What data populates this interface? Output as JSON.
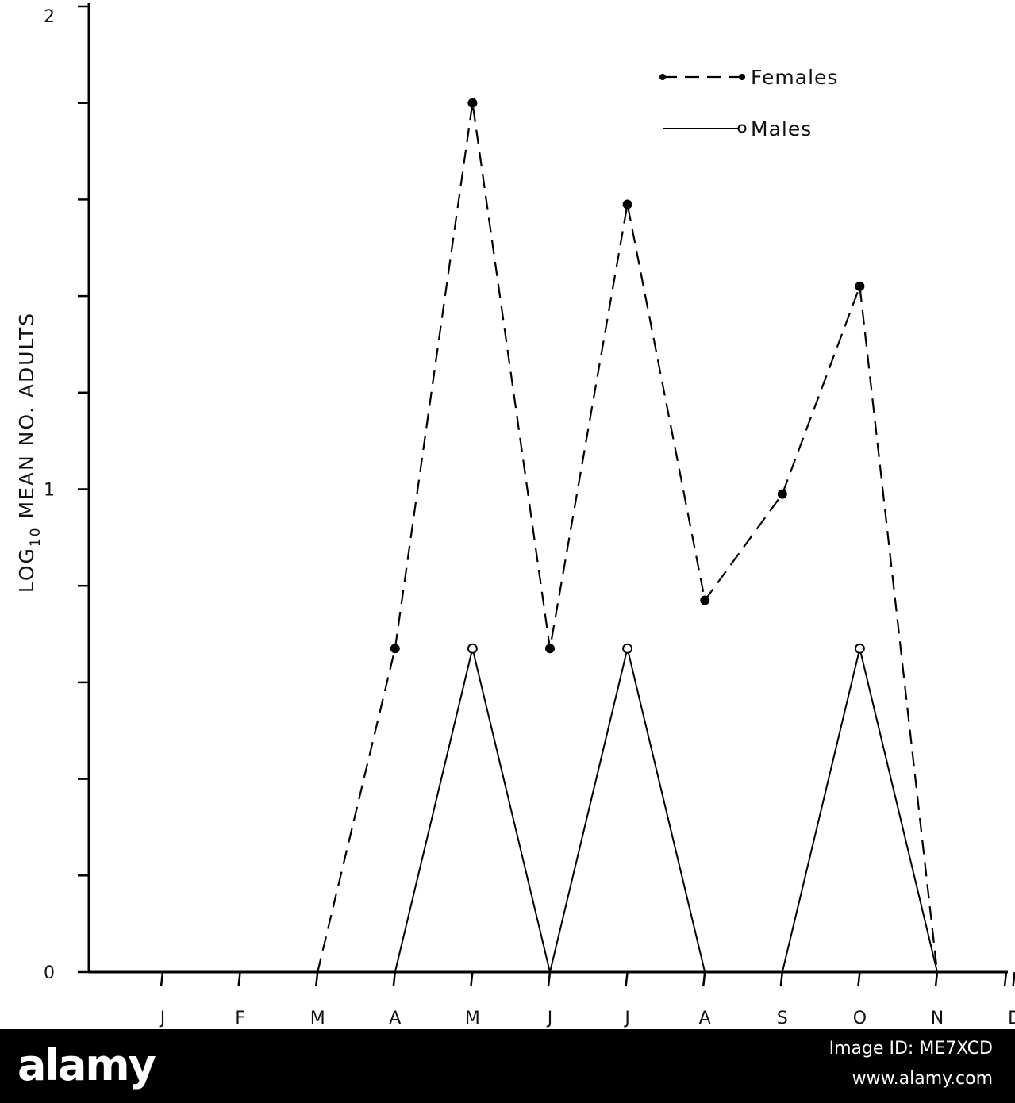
{
  "chart_data": {
    "type": "line",
    "categories": [
      "J",
      "F",
      "M",
      "A",
      "M",
      "J",
      "J",
      "A",
      "S",
      "O",
      "N",
      "D"
    ],
    "ylabel_main": "LOG",
    "ylabel_sub": "10",
    "ylabel_rest": " MEAN NO. ADULTS",
    "y_tick_labels": [
      "0",
      "1",
      "2"
    ],
    "ylim": [
      0,
      2
    ],
    "legend_position": "top-right",
    "series": [
      {
        "name": "Females",
        "style": "dashed, filled markers",
        "points": [
          {
            "x": "M",
            "y": 0
          },
          {
            "x": "A",
            "y": 0.67
          },
          {
            "x": "M",
            "y": 1.8
          },
          {
            "x": "J",
            "y": 0.67
          },
          {
            "x": "J",
            "y": 1.59
          },
          {
            "x": "A",
            "y": 0.77
          },
          {
            "x": "S",
            "y": 0.99
          },
          {
            "x": "O",
            "y": 1.42
          },
          {
            "x": "N",
            "y": 0
          }
        ]
      },
      {
        "name": "Males",
        "style": "solid, open markers",
        "points": [
          {
            "x": "A",
            "y": 0
          },
          {
            "x": "M",
            "y": 0.67
          },
          {
            "x": "J",
            "y": 0
          },
          {
            "x": "J",
            "y": 0.67
          },
          {
            "x": "A",
            "y": 0
          },
          {
            "x": "S",
            "y": 0
          },
          {
            "x": "O",
            "y": 0.67
          },
          {
            "x": "N",
            "y": 0
          }
        ]
      }
    ]
  },
  "watermark": {
    "logo_text": "alamy",
    "image_id": "Image ID: ME7XCD",
    "url": "www.alamy.com"
  }
}
